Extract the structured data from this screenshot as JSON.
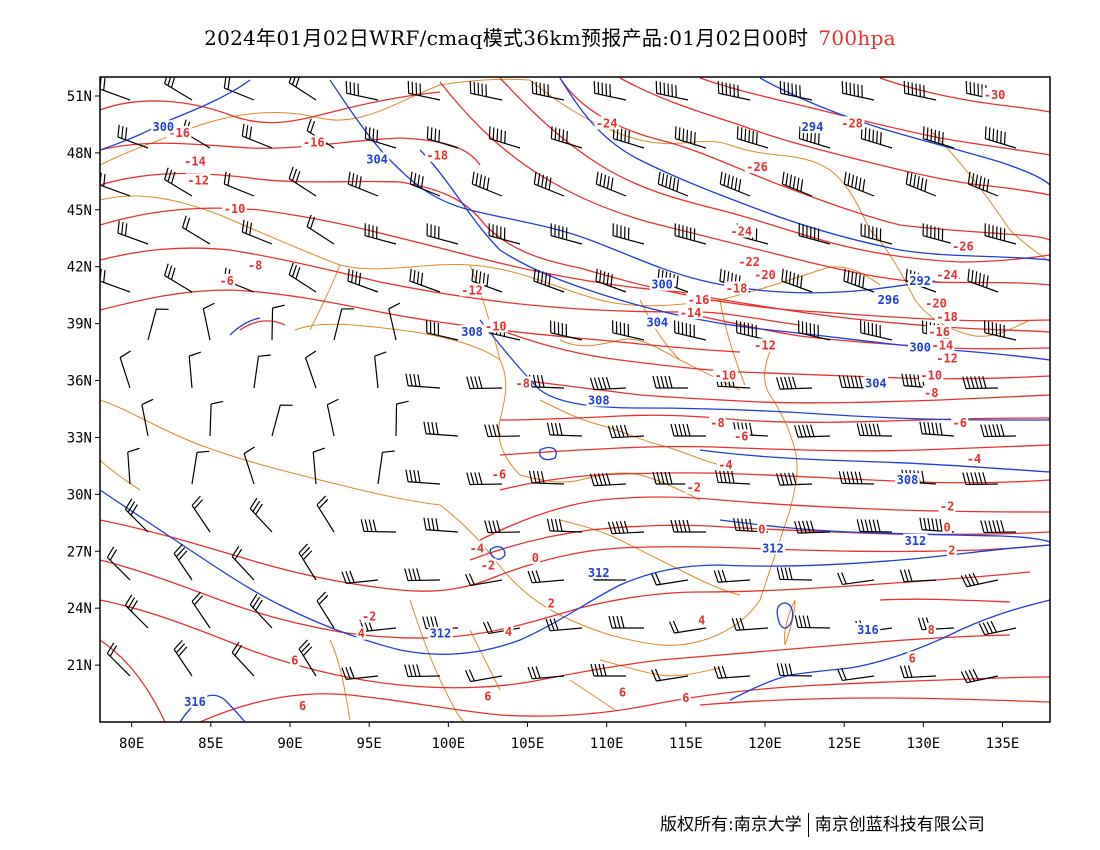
{
  "title": {
    "main": "2024年01月02日WRF/cmaq模式36km预报产品:01月02日00时",
    "level": "700hpa"
  },
  "axes": {
    "lon_labels": [
      "80E",
      "85E",
      "90E",
      "95E",
      "100E",
      "105E",
      "110E",
      "115E",
      "120E",
      "125E",
      "130E",
      "135E"
    ],
    "lon_values": [
      80,
      85,
      90,
      95,
      100,
      105,
      110,
      115,
      120,
      125,
      130,
      135
    ],
    "lat_labels": [
      "51N",
      "48N",
      "45N",
      "42N",
      "39N",
      "36N",
      "33N",
      "30N",
      "27N",
      "24N",
      "21N"
    ],
    "lat_values": [
      51,
      48,
      45,
      42,
      39,
      36,
      33,
      30,
      27,
      24,
      21
    ],
    "lon_range": [
      78,
      138
    ],
    "lat_range": [
      18,
      52
    ]
  },
  "colors": {
    "temperature": "#e8312f",
    "height": "#1f3fd8",
    "boundary": "#e0892a",
    "wind": "#000000"
  },
  "chart_data": {
    "type": "map",
    "temperature_labels": [
      {
        "text": "-16",
        "lon": 83.0,
        "lat": 49.0
      },
      {
        "text": "-16",
        "lon": 91.5,
        "lat": 48.5
      },
      {
        "text": "-14",
        "lon": 84.0,
        "lat": 47.5
      },
      {
        "text": "-12",
        "lon": 84.2,
        "lat": 46.5
      },
      {
        "text": "-10",
        "lon": 86.5,
        "lat": 45.0
      },
      {
        "text": "-8",
        "lon": 87.8,
        "lat": 42.0
      },
      {
        "text": "-6",
        "lon": 86.0,
        "lat": 41.2
      },
      {
        "text": "-18",
        "lon": 99.3,
        "lat": 47.8
      },
      {
        "text": "-24",
        "lon": 110.0,
        "lat": 49.5
      },
      {
        "text": "-28",
        "lon": 125.5,
        "lat": 49.5
      },
      {
        "text": "-30",
        "lon": 134.5,
        "lat": 51.0
      },
      {
        "text": "-26",
        "lon": 119.5,
        "lat": 47.2
      },
      {
        "text": "-24",
        "lon": 118.5,
        "lat": 43.8
      },
      {
        "text": "-26",
        "lon": 132.5,
        "lat": 43.0
      },
      {
        "text": "-24",
        "lon": 131.5,
        "lat": 41.5
      },
      {
        "text": "-22",
        "lon": 119.0,
        "lat": 42.2
      },
      {
        "text": "-20",
        "lon": 120.0,
        "lat": 41.5
      },
      {
        "text": "-18",
        "lon": 118.2,
        "lat": 40.8
      },
      {
        "text": "-16",
        "lon": 115.8,
        "lat": 40.2
      },
      {
        "text": "-14",
        "lon": 115.3,
        "lat": 39.5
      },
      {
        "text": "-12",
        "lon": 101.5,
        "lat": 40.7
      },
      {
        "text": "-10",
        "lon": 103.0,
        "lat": 38.8
      },
      {
        "text": "-12",
        "lon": 120.0,
        "lat": 37.8
      },
      {
        "text": "-10",
        "lon": 117.5,
        "lat": 36.2
      },
      {
        "text": "-8",
        "lon": 104.7,
        "lat": 35.8
      },
      {
        "text": "-8",
        "lon": 117.0,
        "lat": 33.7
      },
      {
        "text": "-6",
        "lon": 118.5,
        "lat": 33.0
      },
      {
        "text": "-4",
        "lon": 117.5,
        "lat": 31.5
      },
      {
        "text": "-6",
        "lon": 103.2,
        "lat": 31.0
      },
      {
        "text": "-2",
        "lon": 115.5,
        "lat": 30.3
      },
      {
        "text": "-20",
        "lon": 130.8,
        "lat": 40.0
      },
      {
        "text": "-18",
        "lon": 131.5,
        "lat": 39.3
      },
      {
        "text": "-16",
        "lon": 131.0,
        "lat": 38.5
      },
      {
        "text": "-14",
        "lon": 131.2,
        "lat": 37.8
      },
      {
        "text": "-12",
        "lon": 131.5,
        "lat": 37.1
      },
      {
        "text": "-10",
        "lon": 130.5,
        "lat": 36.2
      },
      {
        "text": "-8",
        "lon": 130.5,
        "lat": 35.3
      },
      {
        "text": "-6",
        "lon": 132.3,
        "lat": 33.7
      },
      {
        "text": "-4",
        "lon": 133.2,
        "lat": 31.8
      },
      {
        "text": "-2",
        "lon": 131.5,
        "lat": 29.3
      },
      {
        "text": "0",
        "lon": 131.5,
        "lat": 28.2
      },
      {
        "text": "2",
        "lon": 131.8,
        "lat": 27.0
      },
      {
        "text": "0",
        "lon": 119.8,
        "lat": 28.1
      },
      {
        "text": "-4",
        "lon": 101.8,
        "lat": 27.1
      },
      {
        "text": "-2",
        "lon": 102.5,
        "lat": 26.2
      },
      {
        "text": "0",
        "lon": 105.5,
        "lat": 26.6
      },
      {
        "text": "2",
        "lon": 106.5,
        "lat": 24.2
      },
      {
        "text": "-2",
        "lon": 95.0,
        "lat": 23.5
      },
      {
        "text": "4",
        "lon": 94.5,
        "lat": 22.6
      },
      {
        "text": "4",
        "lon": 103.8,
        "lat": 22.7
      },
      {
        "text": "4",
        "lon": 116.0,
        "lat": 23.3
      },
      {
        "text": "6",
        "lon": 90.3,
        "lat": 21.2
      },
      {
        "text": "6",
        "lon": 102.5,
        "lat": 19.3
      },
      {
        "text": "6",
        "lon": 111.0,
        "lat": 19.5
      },
      {
        "text": "6",
        "lon": 115.0,
        "lat": 19.2
      },
      {
        "text": "8",
        "lon": 130.5,
        "lat": 22.8
      },
      {
        "text": "6",
        "lon": 129.3,
        "lat": 21.3
      },
      {
        "text": "6",
        "lon": 90.8,
        "lat": 18.8
      }
    ],
    "height_labels": [
      {
        "text": "300",
        "lon": 82.0,
        "lat": 49.3
      },
      {
        "text": "304",
        "lon": 95.5,
        "lat": 47.6
      },
      {
        "text": "294",
        "lon": 123.0,
        "lat": 49.3
      },
      {
        "text": "300",
        "lon": 113.5,
        "lat": 41.0
      },
      {
        "text": "292",
        "lon": 129.8,
        "lat": 41.2
      },
      {
        "text": "296",
        "lon": 127.8,
        "lat": 40.2
      },
      {
        "text": "304",
        "lon": 113.2,
        "lat": 39.0
      },
      {
        "text": "300",
        "lon": 129.8,
        "lat": 37.7
      },
      {
        "text": "304",
        "lon": 127.0,
        "lat": 35.8
      },
      {
        "text": "308",
        "lon": 101.5,
        "lat": 38.5
      },
      {
        "text": "308",
        "lon": 109.5,
        "lat": 34.9
      },
      {
        "text": "308",
        "lon": 129.0,
        "lat": 30.7
      },
      {
        "text": "312",
        "lon": 129.5,
        "lat": 27.5
      },
      {
        "text": "312",
        "lon": 120.5,
        "lat": 27.1
      },
      {
        "text": "312",
        "lon": 109.5,
        "lat": 25.8
      },
      {
        "text": "312",
        "lon": 99.5,
        "lat": 22.6
      },
      {
        "text": "316",
        "lon": 126.5,
        "lat": 22.8
      },
      {
        "text": "316",
        "lon": 84.0,
        "lat": 19.0
      }
    ]
  },
  "footer": {
    "copyright": "版权所有:南京大学",
    "company": "南京创蓝科技有限公司"
  }
}
